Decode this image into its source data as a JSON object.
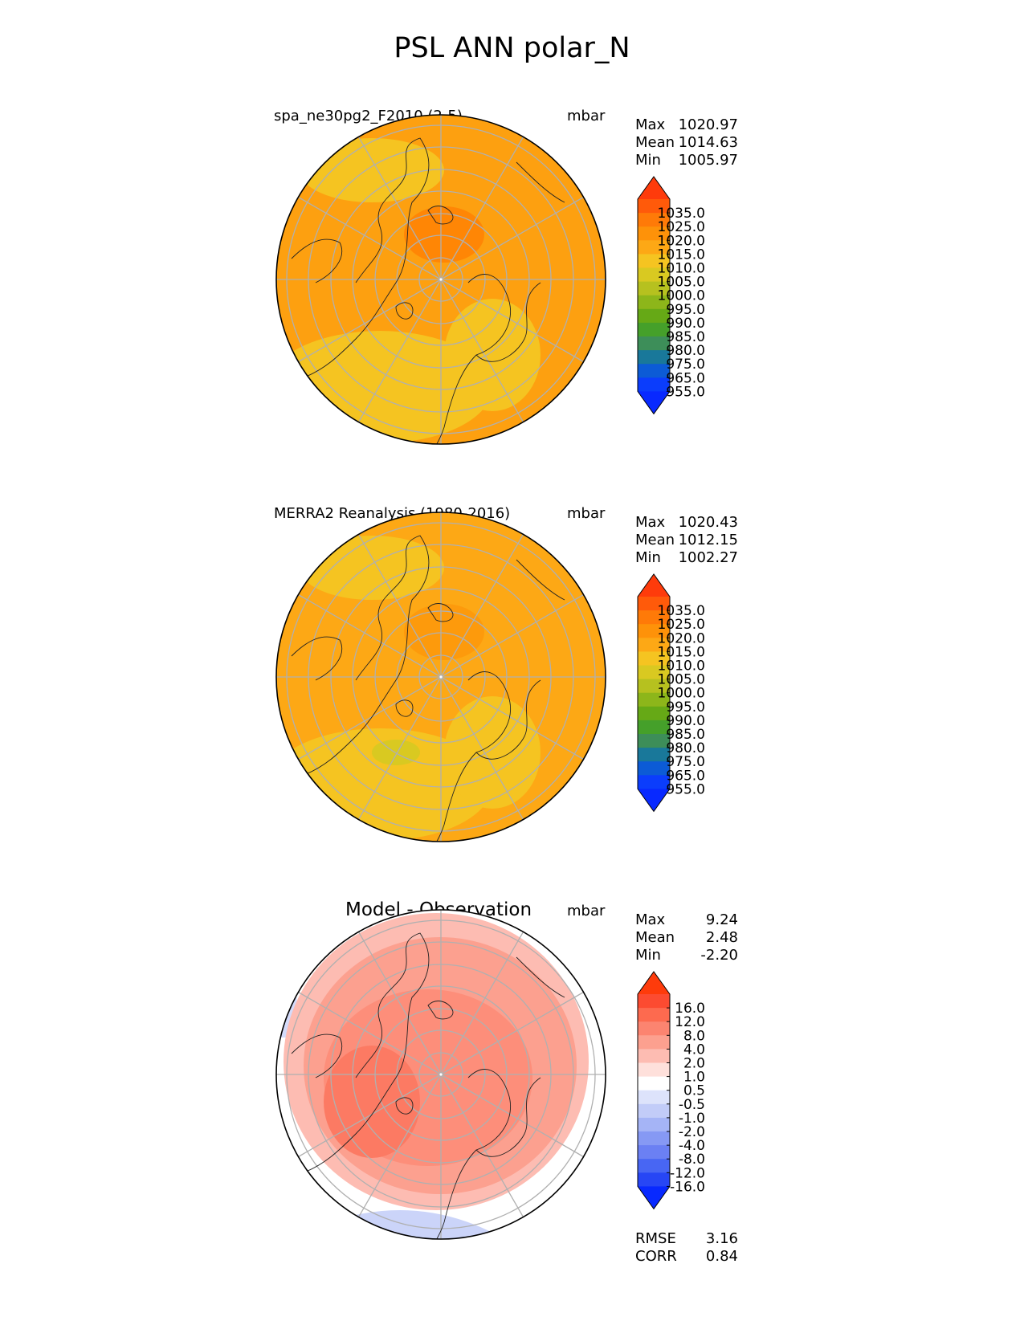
{
  "figure": {
    "title": "PSL ANN polar_N"
  },
  "panels": [
    {
      "name": "model",
      "label": "spa_ne30pg2_F2010 (2-5)",
      "units": "mbar",
      "stats": {
        "max_label": "Max",
        "max": "1020.97",
        "mean_label": "Mean",
        "mean": "1014.63",
        "min_label": "Min",
        "min": "1005.97"
      },
      "colorbar": {
        "labels": [
          "1035.0",
          "1025.0",
          "1020.0",
          "1015.0",
          "1010.0",
          "1005.0",
          "1000.0",
          "995.0",
          "990.0",
          "985.0",
          "980.0",
          "975.0",
          "965.0",
          "955.0"
        ],
        "colors": [
          "#fe3b0b",
          "#ff5a0a",
          "#ff7a08",
          "#fe9209",
          "#fda815",
          "#f5c421",
          "#d9c921",
          "#b6c11f",
          "#8db61a",
          "#66a916",
          "#45a02a",
          "#3d8e59",
          "#19789a",
          "#0c5bd6",
          "#0b3dfc",
          "#0829ff"
        ]
      },
      "map": {
        "type": "polar_stereographic",
        "hemisphere": "north",
        "dominant_color": "#fda010",
        "secondary_color": "#f5c421",
        "high_color": "#ff8605"
      }
    },
    {
      "name": "observation",
      "label": "MERRA2 Reanalysis (1980-2016)",
      "units": "mbar",
      "stats": {
        "max_label": "Max",
        "max": "1020.43",
        "mean_label": "Mean",
        "mean": "1012.15",
        "min_label": "Min",
        "min": "1002.27"
      },
      "colorbar": {
        "labels": [
          "1035.0",
          "1025.0",
          "1020.0",
          "1015.0",
          "1010.0",
          "1005.0",
          "1000.0",
          "995.0",
          "990.0",
          "985.0",
          "980.0",
          "975.0",
          "965.0",
          "955.0"
        ],
        "colors": [
          "#fe3b0b",
          "#ff5a0a",
          "#ff7a08",
          "#fe9209",
          "#fda815",
          "#f5c421",
          "#d9c921",
          "#b6c11f",
          "#8db61a",
          "#66a916",
          "#45a02a",
          "#3d8e59",
          "#19789a",
          "#0c5bd6",
          "#0b3dfc",
          "#0829ff"
        ]
      },
      "map": {
        "type": "polar_stereographic",
        "hemisphere": "north",
        "dominant_color": "#fda815",
        "secondary_color": "#f5c421",
        "high_color": "#fd9a0c"
      }
    },
    {
      "name": "difference",
      "label": "Model - Observation",
      "units": "mbar",
      "stats": {
        "max_label": "Max",
        "max": "9.24",
        "mean_label": "Mean",
        "mean": "2.48",
        "min_label": "Min",
        "min": "-2.20",
        "rmse_label": "RMSE",
        "rmse": "3.16",
        "corr_label": "CORR",
        "corr": "0.84"
      },
      "colorbar": {
        "labels": [
          "16.0",
          "12.0",
          "8.0",
          "4.0",
          "2.0",
          "1.0",
          "0.5",
          "-0.5",
          "-1.0",
          "-2.0",
          "-4.0",
          "-8.0",
          "-12.0",
          "-16.0"
        ],
        "colors": [
          "#fe3b0b",
          "#fc4b31",
          "#fd6a4f",
          "#fc8470",
          "#fca08f",
          "#fdbcb2",
          "#fee0db",
          "#ffffff",
          "#dde3fb",
          "#c2ccf8",
          "#a5b4f6",
          "#8699f4",
          "#6b80f3",
          "#4866f3",
          "#2746f5",
          "#0829ff"
        ]
      },
      "map": {
        "type": "polar_stereographic",
        "hemisphere": "north",
        "dominant_color": "#fca08f",
        "secondary_color": "#fd8e7a",
        "edge_color": "#ffffff",
        "negative_color": "#c2ccf8"
      }
    }
  ]
}
